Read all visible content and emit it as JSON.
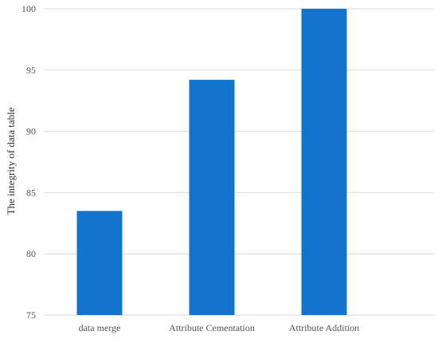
{
  "chart_data": {
    "type": "bar",
    "title": "",
    "xlabel": "",
    "ylabel": "The integrity of data table",
    "categories": [
      "data merge",
      "Attribute Cementation",
      "Attribute Addition"
    ],
    "series": [
      {
        "values": [
          83.5,
          94.2,
          100
        ],
        "color": "#1473cc"
      }
    ],
    "ylim": [
      75,
      100
    ],
    "yticks": [
      75,
      80,
      85,
      90,
      95,
      100
    ],
    "grid": true,
    "legend": "none"
  }
}
